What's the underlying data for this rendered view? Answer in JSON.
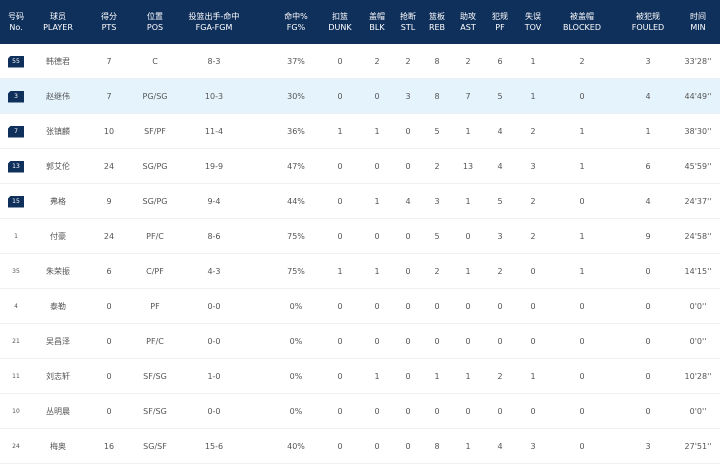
{
  "columns": [
    {
      "cn": "号码",
      "en": "No."
    },
    {
      "cn": "球员",
      "en": "PLAYER"
    },
    {
      "cn": "得分",
      "en": "PTS"
    },
    {
      "cn": "位置",
      "en": "POS"
    },
    {
      "cn": "投篮出手-命中",
      "en": "FGA-FGM"
    },
    {
      "cn": "命中%",
      "en": "FG%"
    },
    {
      "cn": "扣篮",
      "en": "DUNK"
    },
    {
      "cn": "盖帽",
      "en": "BLK"
    },
    {
      "cn": "抢断",
      "en": "STL"
    },
    {
      "cn": "篮板",
      "en": "REB"
    },
    {
      "cn": "助攻",
      "en": "AST"
    },
    {
      "cn": "犯规",
      "en": "PF"
    },
    {
      "cn": "失误",
      "en": "TOV"
    },
    {
      "cn": "被盖帽",
      "en": "BLOCKED"
    },
    {
      "cn": "被犯规",
      "en": "FOULED"
    },
    {
      "cn": "时间",
      "en": "MIN"
    }
  ],
  "rows": [
    {
      "no": "55",
      "starter": true,
      "player": "韩德君",
      "pts": "7",
      "pos": "C",
      "fga_fgm": "8-3",
      "fg_pct": "37%",
      "dunk": "0",
      "blk": "2",
      "stl": "2",
      "reb": "8",
      "ast": "2",
      "pf": "6",
      "tov": "1",
      "blocked": "2",
      "fouled": "3",
      "min": "33'28''"
    },
    {
      "no": "3",
      "starter": true,
      "player": "赵继伟",
      "pts": "7",
      "pos": "PG/SG",
      "fga_fgm": "10-3",
      "fg_pct": "30%",
      "dunk": "0",
      "blk": "0",
      "stl": "3",
      "reb": "8",
      "ast": "7",
      "pf": "5",
      "tov": "1",
      "blocked": "0",
      "fouled": "4",
      "min": "44'49''"
    },
    {
      "no": "7",
      "starter": true,
      "player": "张镇麟",
      "pts": "10",
      "pos": "SF/PF",
      "fga_fgm": "11-4",
      "fg_pct": "36%",
      "dunk": "1",
      "blk": "1",
      "stl": "0",
      "reb": "5",
      "ast": "1",
      "pf": "4",
      "tov": "2",
      "blocked": "1",
      "fouled": "1",
      "min": "38'30''"
    },
    {
      "no": "13",
      "starter": true,
      "player": "郭艾伦",
      "pts": "24",
      "pos": "SG/PG",
      "fga_fgm": "19-9",
      "fg_pct": "47%",
      "dunk": "0",
      "blk": "0",
      "stl": "0",
      "reb": "2",
      "ast": "13",
      "pf": "4",
      "tov": "3",
      "blocked": "1",
      "fouled": "6",
      "min": "45'59''"
    },
    {
      "no": "15",
      "starter": true,
      "player": "弗格",
      "pts": "9",
      "pos": "SG/PG",
      "fga_fgm": "9-4",
      "fg_pct": "44%",
      "dunk": "0",
      "blk": "1",
      "stl": "4",
      "reb": "3",
      "ast": "1",
      "pf": "5",
      "tov": "2",
      "blocked": "0",
      "fouled": "4",
      "min": "24'37''"
    },
    {
      "no": "1",
      "starter": false,
      "player": "付豪",
      "pts": "24",
      "pos": "PF/C",
      "fga_fgm": "8-6",
      "fg_pct": "75%",
      "dunk": "0",
      "blk": "0",
      "stl": "0",
      "reb": "5",
      "ast": "0",
      "pf": "3",
      "tov": "2",
      "blocked": "1",
      "fouled": "9",
      "min": "24'58''"
    },
    {
      "no": "35",
      "starter": false,
      "player": "朱荣振",
      "pts": "6",
      "pos": "C/PF",
      "fga_fgm": "4-3",
      "fg_pct": "75%",
      "dunk": "1",
      "blk": "1",
      "stl": "0",
      "reb": "2",
      "ast": "1",
      "pf": "2",
      "tov": "0",
      "blocked": "1",
      "fouled": "0",
      "min": "14'15''"
    },
    {
      "no": "4",
      "starter": false,
      "player": "泰勒",
      "pts": "0",
      "pos": "PF",
      "fga_fgm": "0-0",
      "fg_pct": "0%",
      "dunk": "0",
      "blk": "0",
      "stl": "0",
      "reb": "0",
      "ast": "0",
      "pf": "0",
      "tov": "0",
      "blocked": "0",
      "fouled": "0",
      "min": "0'0''"
    },
    {
      "no": "21",
      "starter": false,
      "player": "吴昌泽",
      "pts": "0",
      "pos": "PF/C",
      "fga_fgm": "0-0",
      "fg_pct": "0%",
      "dunk": "0",
      "blk": "0",
      "stl": "0",
      "reb": "0",
      "ast": "0",
      "pf": "0",
      "tov": "0",
      "blocked": "0",
      "fouled": "0",
      "min": "0'0''"
    },
    {
      "no": "11",
      "starter": false,
      "player": "刘志轩",
      "pts": "0",
      "pos": "SF/SG",
      "fga_fgm": "1-0",
      "fg_pct": "0%",
      "dunk": "0",
      "blk": "1",
      "stl": "0",
      "reb": "1",
      "ast": "1",
      "pf": "2",
      "tov": "1",
      "blocked": "0",
      "fouled": "0",
      "min": "10'28''"
    },
    {
      "no": "10",
      "starter": false,
      "player": "丛明晨",
      "pts": "0",
      "pos": "SF/SG",
      "fga_fgm": "0-0",
      "fg_pct": "0%",
      "dunk": "0",
      "blk": "0",
      "stl": "0",
      "reb": "0",
      "ast": "0",
      "pf": "0",
      "tov": "0",
      "blocked": "0",
      "fouled": "0",
      "min": "0'0''"
    },
    {
      "no": "24",
      "starter": false,
      "player": "梅奥",
      "pts": "16",
      "pos": "SG/SF",
      "fga_fgm": "15-6",
      "fg_pct": "40%",
      "dunk": "0",
      "blk": "0",
      "stl": "0",
      "reb": "8",
      "ast": "1",
      "pf": "4",
      "tov": "3",
      "blocked": "0",
      "fouled": "3",
      "min": "27'51''"
    }
  ],
  "highlight_row": 1,
  "colors": {
    "header_bg": "#10305c",
    "highlight_bg": "#e5f3fd"
  }
}
